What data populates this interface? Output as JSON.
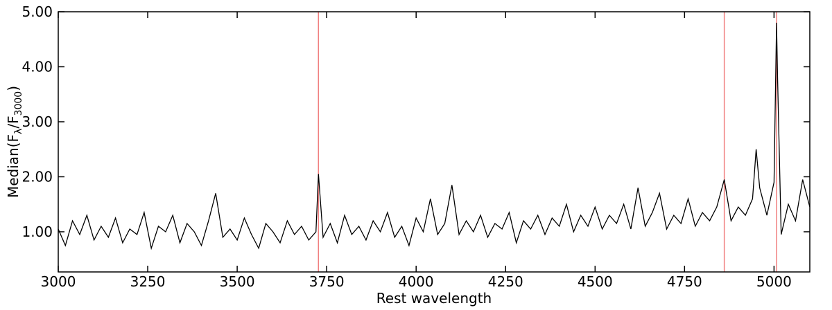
{
  "chart_data": {
    "type": "line",
    "xlabel": "Rest wavelength",
    "ylabel": {
      "prefix": "Median(F",
      "sub1": "λ",
      "mid": "/F",
      "sub2": "3000",
      "suffix": ")"
    },
    "xlim": [
      3000,
      5100
    ],
    "ylim": [
      0.27,
      5
    ],
    "xticks": [
      3000,
      3250,
      3500,
      3750,
      4000,
      4250,
      4500,
      4750,
      5000
    ],
    "yticks": [
      {
        "value": 1,
        "label": "1.00"
      },
      {
        "value": 2,
        "label": "2.00"
      },
      {
        "value": 3,
        "label": "3.00"
      },
      {
        "value": 4,
        "label": "4.00"
      },
      {
        "value": 5,
        "label": "5.00"
      }
    ],
    "vlines": [
      3727,
      4861,
      5007
    ],
    "vline_color": "#f08080",
    "series": [
      {
        "color": "#000000",
        "x": [
          3000,
          3020,
          3040,
          3060,
          3080,
          3100,
          3120,
          3140,
          3160,
          3180,
          3200,
          3220,
          3240,
          3260,
          3280,
          3300,
          3320,
          3340,
          3360,
          3380,
          3400,
          3420,
          3440,
          3460,
          3480,
          3500,
          3520,
          3540,
          3560,
          3580,
          3600,
          3620,
          3640,
          3660,
          3680,
          3700,
          3720,
          3727,
          3740,
          3760,
          3780,
          3800,
          3820,
          3840,
          3860,
          3880,
          3900,
          3920,
          3940,
          3960,
          3980,
          4000,
          4020,
          4040,
          4060,
          4080,
          4100,
          4120,
          4140,
          4160,
          4180,
          4200,
          4220,
          4240,
          4260,
          4280,
          4300,
          4320,
          4340,
          4360,
          4380,
          4400,
          4420,
          4440,
          4460,
          4480,
          4500,
          4520,
          4540,
          4560,
          4580,
          4600,
          4620,
          4640,
          4660,
          4680,
          4700,
          4720,
          4740,
          4760,
          4780,
          4800,
          4820,
          4840,
          4861,
          4880,
          4900,
          4920,
          4940,
          4950,
          4960,
          4980,
          5000,
          5007,
          5010,
          5020,
          5040,
          5060,
          5080,
          5100
        ],
        "values": [
          1.05,
          0.75,
          1.2,
          0.95,
          1.3,
          0.85,
          1.1,
          0.9,
          1.25,
          0.8,
          1.05,
          0.95,
          1.35,
          0.7,
          1.1,
          1.0,
          1.3,
          0.8,
          1.15,
          1.0,
          0.75,
          1.2,
          1.7,
          0.9,
          1.05,
          0.85,
          1.25,
          0.95,
          0.7,
          1.15,
          1.0,
          0.8,
          1.2,
          0.95,
          1.1,
          0.85,
          1.0,
          2.05,
          0.9,
          1.15,
          0.8,
          1.3,
          0.95,
          1.1,
          0.85,
          1.2,
          1.0,
          1.35,
          0.9,
          1.1,
          0.75,
          1.25,
          1.0,
          1.6,
          0.95,
          1.15,
          1.85,
          0.95,
          1.2,
          1.0,
          1.3,
          0.9,
          1.15,
          1.05,
          1.35,
          0.8,
          1.2,
          1.05,
          1.3,
          0.95,
          1.25,
          1.1,
          1.5,
          1.0,
          1.3,
          1.1,
          1.45,
          1.05,
          1.3,
          1.15,
          1.5,
          1.05,
          1.8,
          1.1,
          1.35,
          1.7,
          1.05,
          1.3,
          1.15,
          1.6,
          1.1,
          1.35,
          1.2,
          1.45,
          1.95,
          1.2,
          1.45,
          1.3,
          1.6,
          2.5,
          1.8,
          1.3,
          1.9,
          4.8,
          3.8,
          0.95,
          1.5,
          1.2,
          1.95,
          1.45
        ]
      }
    ]
  }
}
